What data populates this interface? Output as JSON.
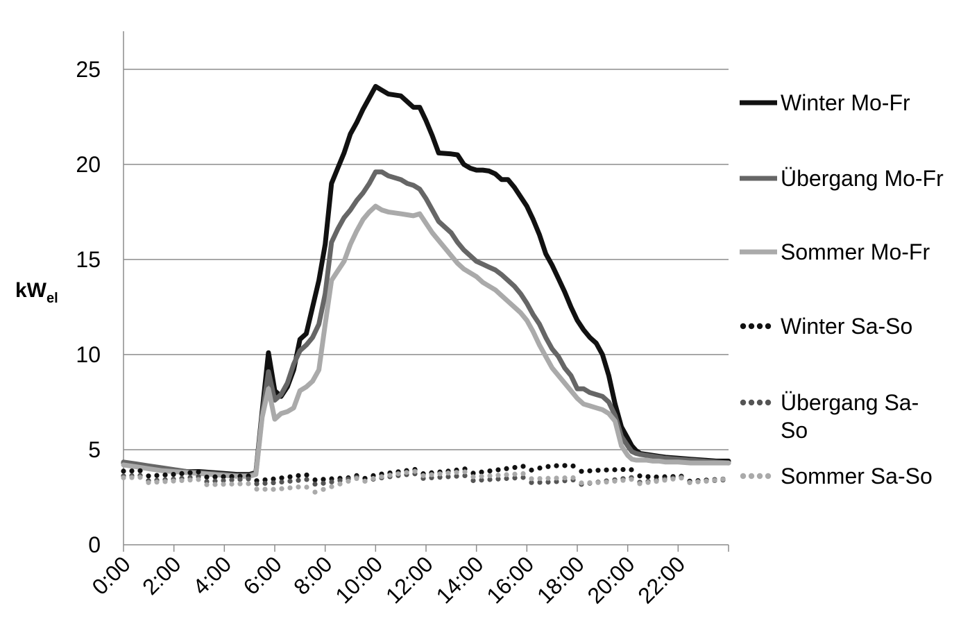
{
  "chart_data": {
    "type": "line",
    "title": "",
    "xlabel": "",
    "ylabel": "kW",
    "ylabel_subscript": "el",
    "ylim": [
      0,
      27
    ],
    "xlim_hours": [
      0,
      24
    ],
    "grid": "horizontal",
    "legend_position": "right",
    "y_ticks": [
      "0",
      "5",
      "10",
      "15",
      "20",
      "25"
    ],
    "x_ticks": [
      "0:00",
      "2:00",
      "4:00",
      "6:00",
      "8:00",
      "10:00",
      "12:00",
      "14:00",
      "16:00",
      "18:00",
      "20:00",
      "22:00"
    ],
    "series": [
      {
        "name": "Winter Mo-Fr",
        "style": "solid",
        "color": "#111111",
        "x": [
          "0:00",
          "0:30",
          "1:00",
          "1:30",
          "2:00",
          "2:30",
          "3:00",
          "3:30",
          "4:00",
          "4:30",
          "5:00",
          "5:15",
          "5:30",
          "5:45",
          "6:00",
          "6:15",
          "6:30",
          "6:45",
          "7:00",
          "7:15",
          "7:30",
          "7:45",
          "8:00",
          "8:15",
          "8:30",
          "8:45",
          "9:00",
          "9:15",
          "9:30",
          "9:45",
          "10:00",
          "10:15",
          "10:30",
          "11:00",
          "11:15",
          "11:30",
          "11:45",
          "12:00",
          "12:15",
          "12:30",
          "13:00",
          "13:15",
          "13:30",
          "13:45",
          "14:00",
          "14:15",
          "14:30",
          "14:45",
          "15:00",
          "15:15",
          "15:30",
          "15:45",
          "16:00",
          "16:15",
          "16:30",
          "16:45",
          "17:00",
          "17:15",
          "17:30",
          "17:45",
          "18:00",
          "18:15",
          "18:30",
          "18:45",
          "19:00",
          "19:15",
          "19:30",
          "19:45",
          "20:00",
          "20:10",
          "20:20",
          "20:30",
          "20:45",
          "21:00",
          "21:15",
          "21:30",
          "22:00",
          "22:30",
          "23:00",
          "23:30",
          "24:00"
        ],
        "values": [
          4.3,
          4.2,
          4.1,
          4.0,
          3.9,
          3.85,
          3.85,
          3.8,
          3.75,
          3.7,
          3.7,
          3.8,
          7.0,
          10.1,
          8.1,
          7.8,
          8.3,
          9.2,
          10.8,
          11.1,
          12.5,
          13.9,
          15.8,
          19.0,
          19.8,
          20.6,
          21.6,
          22.2,
          22.9,
          23.5,
          24.1,
          23.9,
          23.7,
          23.6,
          23.3,
          23.0,
          23.0,
          22.3,
          21.5,
          20.6,
          20.55,
          20.5,
          20.0,
          19.8,
          19.7,
          19.7,
          19.65,
          19.5,
          19.2,
          19.2,
          18.8,
          18.3,
          17.8,
          17.1,
          16.3,
          15.3,
          14.7,
          14.0,
          13.3,
          12.5,
          11.8,
          11.3,
          10.9,
          10.6,
          10.0,
          8.9,
          7.4,
          6.2,
          5.6,
          5.2,
          4.95,
          4.8,
          4.75,
          4.7,
          4.65,
          4.6,
          4.55,
          4.5,
          4.45,
          4.4,
          4.4
        ]
      },
      {
        "name": "Übergang Mo-Fr",
        "style": "solid",
        "color": "#666666",
        "x": [
          "0:00",
          "0:30",
          "1:00",
          "1:30",
          "2:00",
          "2:30",
          "3:00",
          "3:30",
          "4:00",
          "4:30",
          "5:00",
          "5:15",
          "5:30",
          "5:45",
          "6:00",
          "6:15",
          "6:30",
          "6:45",
          "7:00",
          "7:15",
          "7:30",
          "7:45",
          "8:00",
          "8:15",
          "8:30",
          "8:45",
          "9:00",
          "9:15",
          "9:30",
          "9:45",
          "10:00",
          "10:15",
          "10:30",
          "11:00",
          "11:15",
          "11:30",
          "11:45",
          "12:00",
          "12:15",
          "12:30",
          "13:00",
          "13:15",
          "13:30",
          "13:45",
          "14:00",
          "14:15",
          "14:30",
          "14:45",
          "15:00",
          "15:15",
          "15:30",
          "15:45",
          "16:00",
          "16:15",
          "16:30",
          "16:45",
          "17:00",
          "17:15",
          "17:30",
          "17:45",
          "18:00",
          "18:15",
          "18:30",
          "18:45",
          "19:00",
          "19:15",
          "19:30",
          "19:45",
          "20:00",
          "20:10",
          "20:20",
          "20:30",
          "20:45",
          "21:00",
          "21:15",
          "21:30",
          "22:00",
          "22:30",
          "23:00",
          "23:30",
          "24:00"
        ],
        "values": [
          4.35,
          4.25,
          4.15,
          4.05,
          3.95,
          3.85,
          3.8,
          3.75,
          3.7,
          3.65,
          3.65,
          3.75,
          6.8,
          9.1,
          7.6,
          7.9,
          8.5,
          9.5,
          10.2,
          10.5,
          10.9,
          11.6,
          13.2,
          15.9,
          16.6,
          17.2,
          17.6,
          18.1,
          18.5,
          19.0,
          19.6,
          19.6,
          19.4,
          19.2,
          19.0,
          18.9,
          18.7,
          18.2,
          17.6,
          17.0,
          16.4,
          15.9,
          15.5,
          15.2,
          14.9,
          14.75,
          14.6,
          14.45,
          14.2,
          13.9,
          13.6,
          13.2,
          12.7,
          12.1,
          11.6,
          10.9,
          10.3,
          9.9,
          9.3,
          8.9,
          8.2,
          8.2,
          8.0,
          7.9,
          7.8,
          7.5,
          6.8,
          5.7,
          5.2,
          4.9,
          4.8,
          4.75,
          4.7,
          4.65,
          4.6,
          4.55,
          4.5,
          4.45,
          4.4,
          4.35,
          4.3
        ]
      },
      {
        "name": "Sommer Mo-Fr",
        "style": "solid",
        "color": "#aaaaaa",
        "x": [
          "0:00",
          "0:30",
          "1:00",
          "1:30",
          "2:00",
          "2:30",
          "3:00",
          "3:30",
          "4:00",
          "4:30",
          "5:00",
          "5:15",
          "5:30",
          "5:45",
          "6:00",
          "6:15",
          "6:30",
          "6:45",
          "7:00",
          "7:15",
          "7:30",
          "7:45",
          "8:00",
          "8:15",
          "8:30",
          "8:45",
          "9:00",
          "9:15",
          "9:30",
          "9:45",
          "10:00",
          "10:15",
          "10:30",
          "11:00",
          "11:15",
          "11:30",
          "11:45",
          "12:00",
          "12:15",
          "12:30",
          "13:00",
          "13:15",
          "13:30",
          "13:45",
          "14:00",
          "14:15",
          "14:30",
          "14:45",
          "15:00",
          "15:15",
          "15:30",
          "15:45",
          "16:00",
          "16:15",
          "16:30",
          "16:45",
          "17:00",
          "17:15",
          "17:30",
          "17:45",
          "18:00",
          "18:15",
          "18:30",
          "18:45",
          "19:00",
          "19:15",
          "19:30",
          "19:45",
          "20:00",
          "20:10",
          "20:20",
          "20:30",
          "20:45",
          "21:00",
          "21:15",
          "21:30",
          "22:00",
          "22:30",
          "23:00",
          "23:30",
          "24:00"
        ],
        "values": [
          4.2,
          4.1,
          4.0,
          3.9,
          3.85,
          3.8,
          3.75,
          3.7,
          3.65,
          3.6,
          3.6,
          3.7,
          6.7,
          8.2,
          6.6,
          6.9,
          7.0,
          7.2,
          8.1,
          8.3,
          8.6,
          9.2,
          11.6,
          13.9,
          14.4,
          14.9,
          15.8,
          16.5,
          17.1,
          17.5,
          17.8,
          17.6,
          17.5,
          17.4,
          17.35,
          17.3,
          17.4,
          16.9,
          16.4,
          16.0,
          15.2,
          14.8,
          14.5,
          14.3,
          14.1,
          13.8,
          13.6,
          13.4,
          13.1,
          12.8,
          12.5,
          12.2,
          11.8,
          11.2,
          10.5,
          9.9,
          9.3,
          8.9,
          8.5,
          8.1,
          7.7,
          7.4,
          7.3,
          7.2,
          7.1,
          6.9,
          6.5,
          5.2,
          4.7,
          4.5,
          4.45,
          4.45,
          4.45,
          4.4,
          4.4,
          4.35,
          4.35,
          4.3,
          4.3,
          4.3,
          4.3
        ]
      },
      {
        "name": "Winter Sa-So",
        "style": "dotted",
        "color": "#111111",
        "x": [
          "0:00",
          "1:00",
          "2:00",
          "3:00",
          "4:00",
          "5:00",
          "6:00",
          "7:00",
          "8:00",
          "9:00",
          "10:00",
          "11:00",
          "12:00",
          "13:00",
          "14:00",
          "15:00",
          "16:00",
          "16:30",
          "17:00",
          "17:30",
          "18:00",
          "19:00",
          "20:00",
          "21:00",
          "22:00",
          "23:00",
          "24:00"
        ],
        "values": [
          3.85,
          3.75,
          3.7,
          3.7,
          3.6,
          3.5,
          3.5,
          3.55,
          3.5,
          3.45,
          3.75,
          3.8,
          3.85,
          3.85,
          3.9,
          3.95,
          4.0,
          4.1,
          4.15,
          4.1,
          4.0,
          3.95,
          3.85,
          3.6,
          3.5,
          3.45,
          3.4
        ]
      },
      {
        "name": "Übergang Sa-So",
        "style": "dotted",
        "color": "#555555",
        "x": [
          "0:00",
          "1:00",
          "2:00",
          "3:00",
          "4:00",
          "5:00",
          "6:00",
          "7:00",
          "8:00",
          "9:00",
          "10:00",
          "11:00",
          "12:00",
          "13:00",
          "14:00",
          "15:00",
          "16:00",
          "17:00",
          "18:00",
          "19:00",
          "20:00",
          "21:00",
          "22:00",
          "23:00",
          "24:00"
        ],
        "values": [
          3.6,
          3.5,
          3.45,
          3.45,
          3.4,
          3.35,
          3.3,
          3.3,
          3.3,
          3.4,
          3.55,
          3.6,
          3.6,
          3.55,
          3.5,
          3.45,
          3.4,
          3.3,
          3.3,
          3.35,
          3.4,
          3.4,
          3.45,
          3.4,
          3.35
        ]
      },
      {
        "name": "Sommer Sa-So",
        "style": "dotted",
        "color": "#aaaaaa",
        "x": [
          "0:00",
          "1:00",
          "2:00",
          "3:00",
          "4:00",
          "5:00",
          "6:00",
          "7:00",
          "7:30",
          "8:00",
          "9:00",
          "10:00",
          "11:00",
          "12:00",
          "13:00",
          "14:00",
          "15:00",
          "16:00",
          "17:00",
          "18:00",
          "19:00",
          "20:00",
          "21:00",
          "22:00",
          "23:00",
          "24:00"
        ],
        "values": [
          3.5,
          3.4,
          3.35,
          3.3,
          3.2,
          3.1,
          2.95,
          2.95,
          2.85,
          3.0,
          3.3,
          3.6,
          3.7,
          3.75,
          3.75,
          3.7,
          3.65,
          3.6,
          3.5,
          3.4,
          3.3,
          3.3,
          3.35,
          3.4,
          3.4,
          3.4
        ]
      }
    ]
  }
}
